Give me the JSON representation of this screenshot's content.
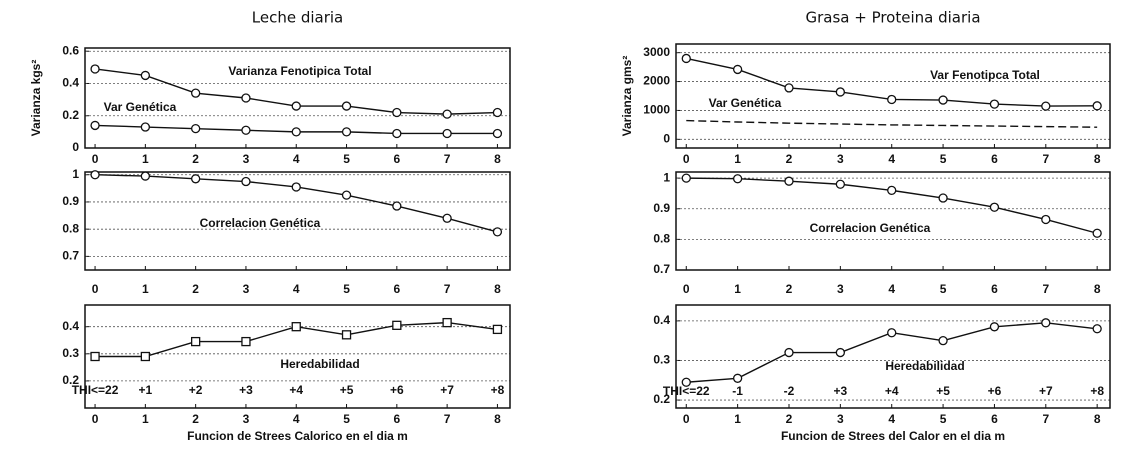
{
  "chart_data": [
    {
      "type": "line",
      "title": "Leche diaria",
      "ylabel": "Varianza kgs²",
      "x": [
        0,
        1,
        2,
        3,
        4,
        5,
        6,
        7,
        8
      ],
      "xlim": [
        -0.2,
        8.25
      ],
      "xticks": [
        0,
        1,
        2,
        3,
        4,
        5,
        6,
        7,
        8
      ],
      "ylim": [
        0,
        0.62
      ],
      "yticks": [
        0,
        0.2,
        0.4,
        0.6
      ],
      "grid": true,
      "annotations": [
        "Varianza Fenotipica Total",
        "Var Genética"
      ],
      "series": [
        {
          "name": "Varianza Fenotipica Total",
          "color": "#111111",
          "marker": "circle",
          "values": [
            0.49,
            0.45,
            0.34,
            0.31,
            0.26,
            0.26,
            0.22,
            0.21,
            0.22
          ]
        },
        {
          "name": "Var Genética",
          "color": "#111111",
          "marker": "circle",
          "values": [
            0.14,
            0.13,
            0.12,
            0.11,
            0.1,
            0.1,
            0.09,
            0.09,
            0.09
          ]
        }
      ]
    },
    {
      "type": "line",
      "x": [
        0,
        1,
        2,
        3,
        4,
        5,
        6,
        7,
        8
      ],
      "xlim": [
        -0.2,
        8.25
      ],
      "xticks": [
        0,
        1,
        2,
        3,
        4,
        5,
        6,
        7,
        8
      ],
      "ylim": [
        0.65,
        1.01
      ],
      "yticks": [
        0.7,
        0.8,
        0.9,
        1
      ],
      "grid": true,
      "annotations": [
        "Correlacion Genética"
      ],
      "series": [
        {
          "name": "Correlacion Genética",
          "color": "#111111",
          "marker": "circle",
          "values": [
            1.0,
            0.995,
            0.985,
            0.975,
            0.955,
            0.925,
            0.885,
            0.84,
            0.79
          ]
        }
      ]
    },
    {
      "type": "line",
      "xlabel": "Funcion de Strees Calorico en el dia m",
      "x": [
        0,
        1,
        2,
        3,
        4,
        5,
        6,
        7,
        8
      ],
      "xlim": [
        -0.2,
        8.25
      ],
      "xticks": [
        0,
        1,
        2,
        3,
        4,
        5,
        6,
        7,
        8
      ],
      "ylim": [
        0.1,
        0.48
      ],
      "yticks": [
        0.2,
        0.3,
        0.4
      ],
      "grid": true,
      "annotations": [
        "Heredabilidad"
      ],
      "point_labels": [
        "THI<=22",
        "+1",
        "+2",
        "+3",
        "+4",
        "+5",
        "+6",
        "+7",
        "+8"
      ],
      "series": [
        {
          "name": "Heredabilidad",
          "color": "#111111",
          "marker": "square",
          "values": [
            0.29,
            0.29,
            0.345,
            0.345,
            0.4,
            0.37,
            0.405,
            0.415,
            0.39
          ]
        }
      ]
    },
    {
      "type": "line",
      "title": "Grasa + Proteina diaria",
      "ylabel": "Varianza gms²",
      "x": [
        0,
        1,
        2,
        3,
        4,
        5,
        6,
        7,
        8
      ],
      "xlim": [
        -0.2,
        8.25
      ],
      "xticks": [
        0,
        1,
        2,
        3,
        4,
        5,
        6,
        7,
        8
      ],
      "ylim": [
        -300,
        3300
      ],
      "yticks": [
        0,
        1000,
        2000,
        3000
      ],
      "grid": true,
      "annotations": [
        "Var Fenotipca Total",
        "Var Genética"
      ],
      "series": [
        {
          "name": "Var Fenotipca Total",
          "color": "#111111",
          "marker": "circle",
          "values": [
            2800,
            2420,
            1780,
            1640,
            1380,
            1360,
            1220,
            1150,
            1160
          ]
        },
        {
          "name": "Var Genética",
          "color": "#111111",
          "marker": "none",
          "dashed": true,
          "values": [
            650,
            600,
            560,
            530,
            500,
            480,
            460,
            440,
            420
          ]
        }
      ]
    },
    {
      "type": "line",
      "x": [
        0,
        1,
        2,
        3,
        4,
        5,
        6,
        7,
        8
      ],
      "xlim": [
        -0.2,
        8.25
      ],
      "xticks": [
        0,
        1,
        2,
        3,
        4,
        5,
        6,
        7,
        8
      ],
      "ylim": [
        0.7,
        1.02
      ],
      "yticks": [
        0.7,
        0.8,
        0.9,
        1
      ],
      "grid": true,
      "annotations": [
        "Correlacion Genética"
      ],
      "series": [
        {
          "name": "Correlacion Genética",
          "color": "#111111",
          "marker": "circle",
          "values": [
            1.0,
            0.998,
            0.99,
            0.98,
            0.96,
            0.935,
            0.905,
            0.865,
            0.82
          ]
        }
      ]
    },
    {
      "type": "line",
      "xlabel": "Funcion de Strees del Calor en el dia m",
      "x": [
        0,
        1,
        2,
        3,
        4,
        5,
        6,
        7,
        8
      ],
      "xlim": [
        -0.2,
        8.25
      ],
      "xticks": [
        0,
        1,
        2,
        3,
        4,
        5,
        6,
        7,
        8
      ],
      "ylim": [
        0.18,
        0.44
      ],
      "yticks": [
        0.2,
        0.3,
        0.4
      ],
      "grid": true,
      "annotations": [
        "Heredabilidad"
      ],
      "point_labels": [
        "THI<=22",
        "-1",
        "-2",
        "+3",
        "+4",
        "+5",
        "+6",
        "+7",
        "+8"
      ],
      "series": [
        {
          "name": "Heredabilidad",
          "color": "#111111",
          "marker": "circle",
          "values": [
            0.245,
            0.255,
            0.32,
            0.32,
            0.37,
            0.35,
            0.385,
            0.395,
            0.38
          ]
        }
      ]
    }
  ]
}
